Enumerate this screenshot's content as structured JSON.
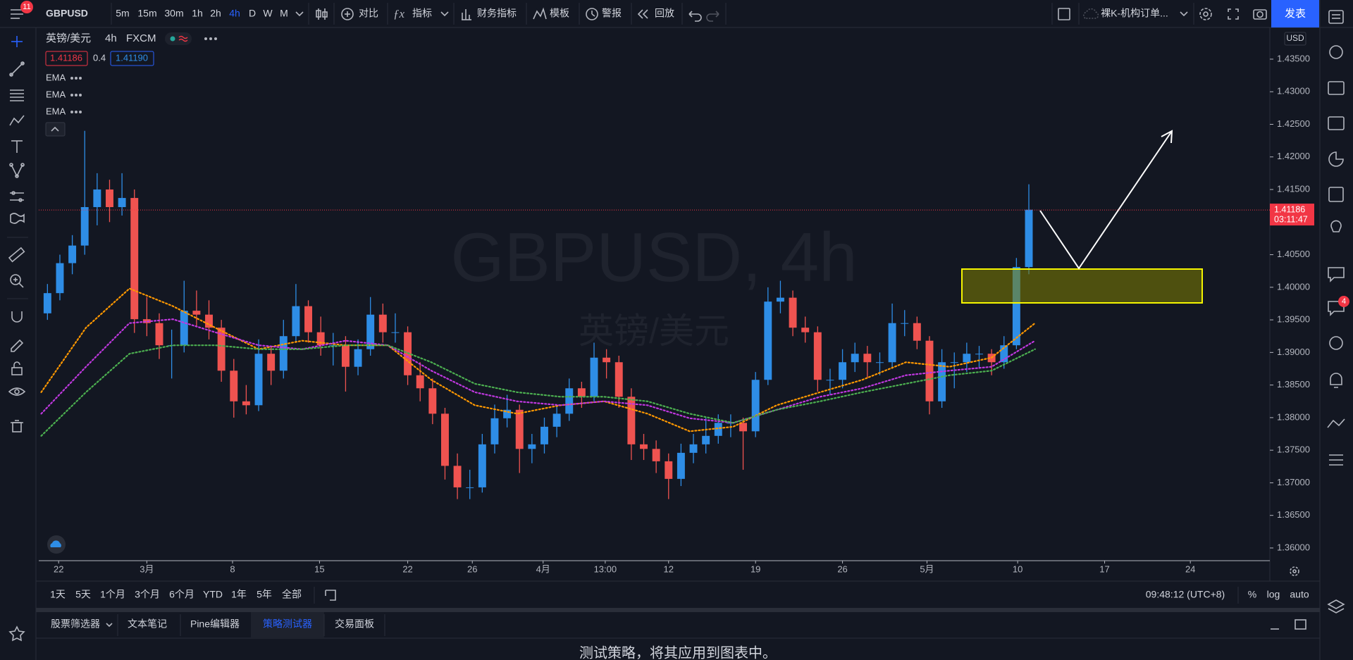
{
  "top_bar": {
    "badge": "11",
    "symbol": "GBPUSD",
    "intervals": [
      "5m",
      "15m",
      "30m",
      "1h",
      "2h",
      "4h",
      "D",
      "W",
      "M"
    ],
    "tools": [
      "对比",
      "指标",
      "财务指标",
      "模板",
      "警报",
      "回放"
    ],
    "layout_name": "裸K-机构订单...",
    "publish": "发表"
  },
  "legend": {
    "symbol_name": "英镑/美元",
    "interval": "4h",
    "exchange": "FXCM",
    "bid": "1.41186",
    "spread": "0.4",
    "ask": "1.41190"
  },
  "chart_data": {
    "type": "candlestick",
    "watermark": "GBPUSD, 4h",
    "watermark_sub": "英镑/美元",
    "currency": "USD",
    "up_color": "#2e8de6",
    "down_color": "#ef5350",
    "grid": false,
    "xlim": [
      -0.7,
      98.4
    ],
    "xticks": [
      {
        "value": 0.9,
        "label": "22"
      },
      {
        "value": 8.0,
        "label": "3月"
      },
      {
        "value": 14.9,
        "label": "8"
      },
      {
        "value": 21.9,
        "label": "15"
      },
      {
        "value": 29.0,
        "label": "22"
      },
      {
        "value": 34.2,
        "label": "26"
      },
      {
        "value": 39.9,
        "label": "4月"
      },
      {
        "value": 44.9,
        "label": "13:00"
      },
      {
        "value": 50.0,
        "label": "12"
      },
      {
        "value": 57.0,
        "label": "19"
      },
      {
        "value": 64.0,
        "label": "26"
      },
      {
        "value": 70.8,
        "label": "5月"
      },
      {
        "value": 78.1,
        "label": "10"
      },
      {
        "value": 85.1,
        "label": "17"
      },
      {
        "value": 92.0,
        "label": "24"
      }
    ],
    "ylim": [
      1.35805,
      1.43986
    ],
    "yticks": [
      {
        "value": 1.36,
        "label": "1.36000"
      },
      {
        "value": 1.365,
        "label": "1.36500"
      },
      {
        "value": 1.37,
        "label": "1.37000"
      },
      {
        "value": 1.375,
        "label": "1.37500"
      },
      {
        "value": 1.38,
        "label": "1.38000"
      },
      {
        "value": 1.385,
        "label": "1.38500"
      },
      {
        "value": 1.39,
        "label": "1.39000"
      },
      {
        "value": 1.395,
        "label": "1.39500"
      },
      {
        "value": 1.4,
        "label": "1.40000"
      },
      {
        "value": 1.405,
        "label": "1.40500"
      },
      {
        "value": 1.41,
        "label": "1.41000"
      },
      {
        "value": 1.415,
        "label": "1.41500"
      },
      {
        "value": 1.42,
        "label": "1.42000"
      },
      {
        "value": 1.425,
        "label": "1.42500"
      },
      {
        "value": 1.43,
        "label": "1.43000"
      },
      {
        "value": 1.435,
        "label": "1.43500"
      }
    ],
    "last_price": 1.41186,
    "countdown": "03:11:47",
    "ohlc": [
      [
        1.396,
        1.4005,
        1.395,
        1.3991
      ],
      [
        1.3991,
        1.405,
        1.398,
        1.4037
      ],
      [
        1.4037,
        1.408,
        1.402,
        1.4064
      ],
      [
        1.4064,
        1.424,
        1.405,
        1.4123
      ],
      [
        1.4123,
        1.4175,
        1.4095,
        1.415
      ],
      [
        1.415,
        1.4165,
        1.41,
        1.4123
      ],
      [
        1.4123,
        1.4175,
        1.411,
        1.4137
      ],
      [
        1.4137,
        1.415,
        1.393,
        1.3951
      ],
      [
        1.3951,
        1.3985,
        1.3925,
        1.3945
      ],
      [
        1.3945,
        1.396,
        1.389,
        1.3911
      ],
      [
        1.3911,
        1.3935,
        1.386,
        1.3911
      ],
      [
        1.3911,
        1.401,
        1.39,
        1.3964
      ],
      [
        1.3964,
        1.3995,
        1.394,
        1.3958
      ],
      [
        1.3958,
        1.398,
        1.392,
        1.3938
      ],
      [
        1.3938,
        1.395,
        1.3855,
        1.3872
      ],
      [
        1.3872,
        1.389,
        1.38,
        1.3825
      ],
      [
        1.3825,
        1.385,
        1.3805,
        1.3819
      ],
      [
        1.3819,
        1.392,
        1.381,
        1.3898
      ],
      [
        1.3898,
        1.391,
        1.385,
        1.3872
      ],
      [
        1.3872,
        1.395,
        1.386,
        1.3925
      ],
      [
        1.3925,
        1.4005,
        1.3915,
        1.3971
      ],
      [
        1.3971,
        1.398,
        1.3915,
        1.3931
      ],
      [
        1.3931,
        1.3955,
        1.3895,
        1.3911
      ],
      [
        1.3911,
        1.393,
        1.388,
        1.3911
      ],
      [
        1.3911,
        1.3925,
        1.384,
        1.3878
      ],
      [
        1.3878,
        1.392,
        1.3865,
        1.3905
      ],
      [
        1.3905,
        1.3985,
        1.3895,
        1.3958
      ],
      [
        1.3958,
        1.3975,
        1.3915,
        1.3931
      ],
      [
        1.3931,
        1.396,
        1.3915,
        1.3931
      ],
      [
        1.3931,
        1.394,
        1.385,
        1.3865
      ],
      [
        1.3865,
        1.3885,
        1.3825,
        1.3845
      ],
      [
        1.3845,
        1.386,
        1.379,
        1.3806
      ],
      [
        1.3806,
        1.3815,
        1.3705,
        1.3726
      ],
      [
        1.3726,
        1.3745,
        1.3675,
        1.3693
      ],
      [
        1.3693,
        1.372,
        1.3675,
        1.3693
      ],
      [
        1.3693,
        1.3775,
        1.3685,
        1.3759
      ],
      [
        1.3759,
        1.382,
        1.3745,
        1.3799
      ],
      [
        1.3799,
        1.3835,
        1.3785,
        1.3812
      ],
      [
        1.3812,
        1.382,
        1.3715,
        1.3752
      ],
      [
        1.3752,
        1.3775,
        1.373,
        1.3759
      ],
      [
        1.3759,
        1.38,
        1.3745,
        1.3786
      ],
      [
        1.3786,
        1.382,
        1.377,
        1.3806
      ],
      [
        1.3806,
        1.386,
        1.3795,
        1.3845
      ],
      [
        1.3845,
        1.3855,
        1.3815,
        1.3832
      ],
      [
        1.3832,
        1.3915,
        1.3825,
        1.3892
      ],
      [
        1.3892,
        1.3905,
        1.386,
        1.3885
      ],
      [
        1.3885,
        1.3895,
        1.3815,
        1.3832
      ],
      [
        1.3832,
        1.3845,
        1.3735,
        1.3759
      ],
      [
        1.3759,
        1.3775,
        1.3735,
        1.3752
      ],
      [
        1.3752,
        1.3765,
        1.3715,
        1.3733
      ],
      [
        1.3733,
        1.3745,
        1.3675,
        1.3706
      ],
      [
        1.3706,
        1.376,
        1.3695,
        1.3746
      ],
      [
        1.3746,
        1.3775,
        1.373,
        1.3759
      ],
      [
        1.3759,
        1.38,
        1.3745,
        1.3772
      ],
      [
        1.3772,
        1.3805,
        1.376,
        1.3792
      ],
      [
        1.3792,
        1.3805,
        1.377,
        1.3792
      ],
      [
        1.3792,
        1.38,
        1.372,
        1.3779
      ],
      [
        1.3779,
        1.387,
        1.377,
        1.3858
      ],
      [
        1.3858,
        1.4,
        1.385,
        1.3978
      ],
      [
        1.3978,
        1.401,
        1.396,
        1.3984
      ],
      [
        1.3984,
        1.3995,
        1.3925,
        1.3938
      ],
      [
        1.3938,
        1.3955,
        1.3915,
        1.3931
      ],
      [
        1.3931,
        1.394,
        1.384,
        1.3858
      ],
      [
        1.3858,
        1.3875,
        1.3835,
        1.3858
      ],
      [
        1.3858,
        1.3905,
        1.3845,
        1.3885
      ],
      [
        1.3885,
        1.3915,
        1.387,
        1.3898
      ],
      [
        1.3898,
        1.391,
        1.386,
        1.3885
      ],
      [
        1.3885,
        1.39,
        1.3865,
        1.3885
      ],
      [
        1.3885,
        1.3975,
        1.3875,
        1.3945
      ],
      [
        1.3945,
        1.3965,
        1.3925,
        1.3945
      ],
      [
        1.3945,
        1.3955,
        1.3905,
        1.3918
      ],
      [
        1.3918,
        1.3925,
        1.3805,
        1.3825
      ],
      [
        1.3825,
        1.3905,
        1.3815,
        1.3885
      ],
      [
        1.3885,
        1.39,
        1.3845,
        1.3885
      ],
      [
        1.3885,
        1.3915,
        1.387,
        1.3898
      ],
      [
        1.3898,
        1.391,
        1.3875,
        1.3898
      ],
      [
        1.3898,
        1.3905,
        1.3865,
        1.3885
      ],
      [
        1.3885,
        1.3925,
        1.3875,
        1.3911
      ],
      [
        1.3911,
        1.4045,
        1.3905,
        1.4031
      ],
      [
        1.4031,
        1.4158,
        1.402,
        1.4119
      ]
    ],
    "series": [
      {
        "name": "EMA",
        "color": "#ff9800",
        "x": [
          -0.5,
          3.1,
          6.6,
          10.1,
          13.5,
          17.0,
          20.5,
          24.0,
          27.4,
          30.9,
          34.4,
          37.8,
          41.3,
          44.8,
          48.3,
          51.7,
          55.2,
          58.7,
          62.2,
          65.6,
          69.1,
          72.6,
          76.0,
          79.5
        ],
        "values": [
          1.3839,
          1.3938,
          1.3998,
          1.3971,
          1.3938,
          1.3905,
          1.3918,
          1.3911,
          1.3911,
          1.3858,
          1.3819,
          1.3806,
          1.3819,
          1.3825,
          1.3806,
          1.3779,
          1.3786,
          1.3819,
          1.3839,
          1.3858,
          1.3885,
          1.3878,
          1.3892,
          1.3945
        ]
      },
      {
        "name": "EMA",
        "color": "#c038e0",
        "x": [
          -0.5,
          3.1,
          6.6,
          10.1,
          13.5,
          17.0,
          20.5,
          24.0,
          27.4,
          30.9,
          34.4,
          37.8,
          41.3,
          44.8,
          48.3,
          51.7,
          55.2,
          58.7,
          62.2,
          65.6,
          69.1,
          72.6,
          76.0,
          79.5
        ],
        "values": [
          1.3806,
          1.3878,
          1.3945,
          1.3951,
          1.3931,
          1.3911,
          1.3905,
          1.3918,
          1.3911,
          1.3872,
          1.3839,
          1.3825,
          1.3819,
          1.3825,
          1.3819,
          1.3799,
          1.3792,
          1.3812,
          1.3832,
          1.3845,
          1.3865,
          1.3872,
          1.3878,
          1.3918
        ]
      },
      {
        "name": "EMA",
        "color": "#4caf50",
        "x": [
          -0.5,
          3.1,
          6.6,
          10.1,
          13.5,
          17.0,
          20.5,
          24.0,
          27.4,
          30.9,
          34.4,
          37.8,
          41.3,
          44.8,
          48.3,
          51.7,
          55.2,
          58.7,
          62.2,
          65.6,
          69.1,
          72.6,
          76.0,
          79.5
        ],
        "values": [
          1.3772,
          1.3839,
          1.3898,
          1.3911,
          1.3911,
          1.3905,
          1.3905,
          1.3911,
          1.3911,
          1.3885,
          1.3852,
          1.3839,
          1.3832,
          1.3832,
          1.3825,
          1.3806,
          1.3792,
          1.3812,
          1.3825,
          1.3839,
          1.3852,
          1.3865,
          1.3872,
          1.3905
        ]
      }
    ]
  },
  "range_bar": {
    "ranges": [
      "1天",
      "5天",
      "1个月",
      "3个月",
      "6个月",
      "YTD",
      "1年",
      "5年",
      "全部"
    ],
    "time": "09:48:12 (UTC+8)",
    "options": [
      "%",
      "log",
      "auto"
    ]
  },
  "bottom_panel": {
    "tabs": [
      "股票筛选器",
      "文本笔记",
      "Pine编辑器",
      "策略测试器",
      "交易面板"
    ],
    "message": "测试策略，将其应用到图表中。"
  },
  "right_toolbar": {
    "badge": "4"
  }
}
